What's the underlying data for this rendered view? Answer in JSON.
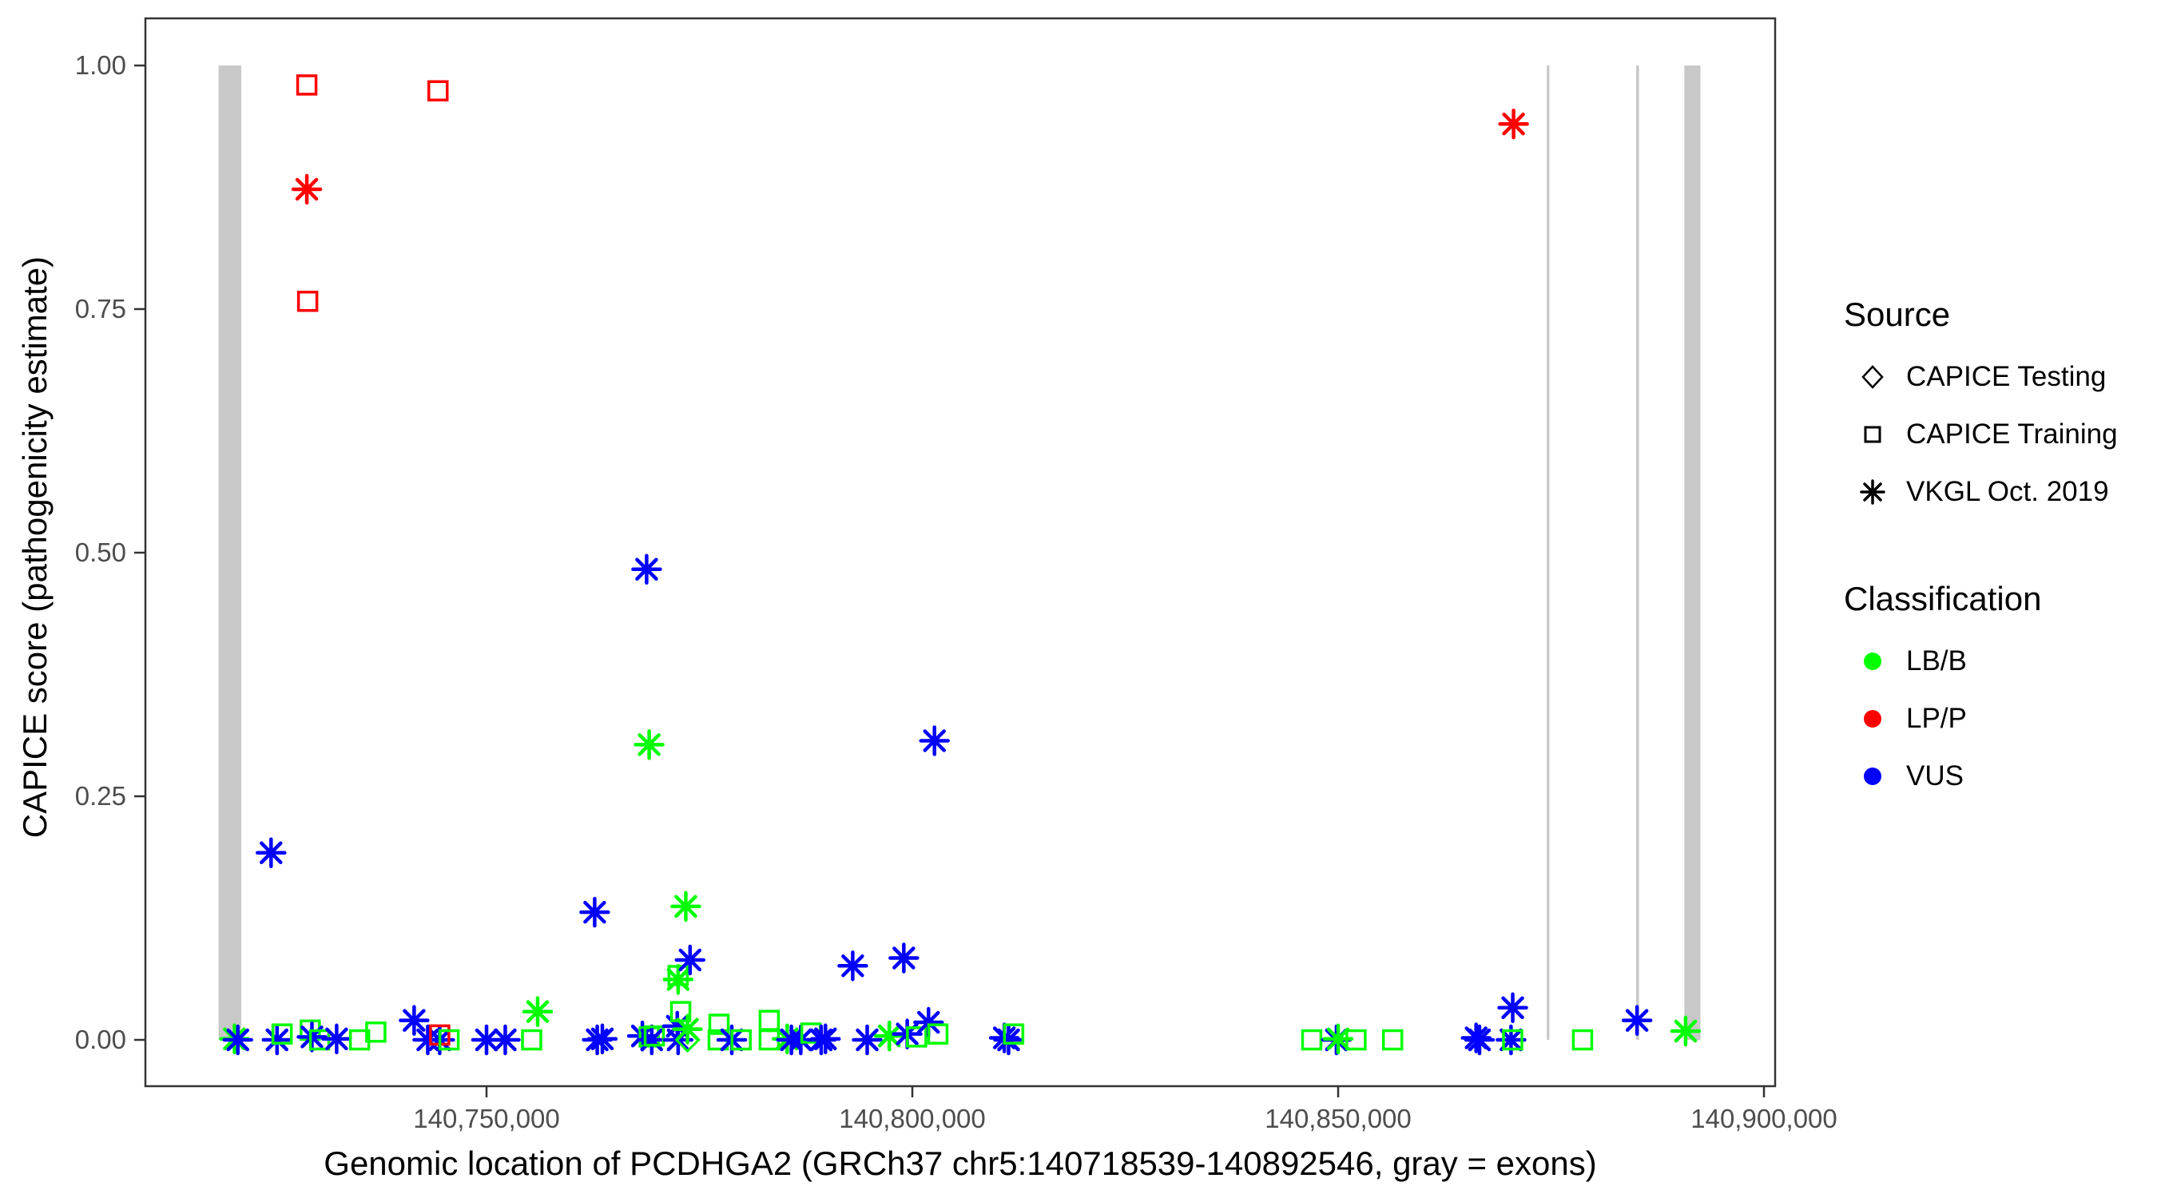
{
  "figure": {
    "y_axis": {
      "title": "CAPICE score (pathogenicity estimate)",
      "ticks": [
        {
          "value": 0.0,
          "label": "0.00"
        },
        {
          "value": 0.25,
          "label": "0.25"
        },
        {
          "value": 0.5,
          "label": "0.50"
        },
        {
          "value": 0.75,
          "label": "0.75"
        },
        {
          "value": 1.0,
          "label": "1.00"
        }
      ]
    },
    "x_axis": {
      "title": "Genomic location of PCDHGA2 (GRCh37 chr5:140718539-140892546, gray = exons)",
      "ticks": [
        {
          "value": 140750000,
          "label": "140,750,000"
        },
        {
          "value": 140800000,
          "label": "140,800,000"
        },
        {
          "value": 140850000,
          "label": "140,850,000"
        },
        {
          "value": 140900000,
          "label": "140,900,000"
        }
      ]
    },
    "legend": {
      "source": {
        "title": "Source",
        "items": [
          {
            "marker": "diamond-icon",
            "label": "CAPICE Testing",
            "source_code": "te"
          },
          {
            "marker": "square-icon",
            "label": "CAPICE Training",
            "source_code": "tr"
          },
          {
            "marker": "asterisk-icon",
            "label": "VKGL Oct. 2019",
            "source_code": "vk"
          }
        ]
      },
      "classification": {
        "title": "Classification",
        "items": [
          {
            "marker": "dot-icon",
            "label": "LB/B",
            "color": "#00FF00"
          },
          {
            "marker": "dot-icon",
            "label": "LP/P",
            "color": "#FF0000"
          },
          {
            "marker": "dot-icon",
            "label": "VUS",
            "color": "#0000FF"
          }
        ]
      }
    },
    "colors": {
      "LB/B": "#00FF00",
      "LP/P": "#FF0000",
      "VUS": "#0000FF",
      "exon": "#C8C8C8",
      "axis_line": "#333333",
      "tick_text": "#4D4D4D",
      "title_text": "#000000"
    }
  },
  "chart_data": {
    "type": "scatter",
    "xlabel": "Genomic location of PCDHGA2 (GRCh37 chr5:140718539-140892546, gray = exons)",
    "ylabel": "CAPICE score (pathogenicity estimate)",
    "xlim": [
      140709944,
      140901313
    ],
    "ylim": [
      -0.0475,
      1.0475
    ],
    "grid": false,
    "legend_position": "right",
    "shape_by_source": {
      "te": "diamond",
      "tr": "square",
      "vk": "asterisk"
    },
    "exons_gray_bars": [
      [
        140718539,
        140721200
      ],
      [
        140874500,
        140874800
      ],
      [
        140885000,
        140885330
      ],
      [
        140890650,
        140892546
      ]
    ],
    "points": [
      {
        "x": 140720400,
        "y": 0.001,
        "source": "vk",
        "classification": "LB/B"
      },
      {
        "x": 140720800,
        "y": 0.0,
        "source": "vk",
        "classification": "VUS"
      },
      {
        "x": 140724700,
        "y": 0.192,
        "source": "vk",
        "classification": "VUS"
      },
      {
        "x": 140725400,
        "y": 0.0,
        "source": "vk",
        "classification": "VUS"
      },
      {
        "x": 140726000,
        "y": 0.006,
        "source": "tr",
        "classification": "LB/B"
      },
      {
        "x": 140729300,
        "y": 0.01,
        "source": "tr",
        "classification": "LB/B"
      },
      {
        "x": 140729500,
        "y": 0.003,
        "source": "vk",
        "classification": "VUS"
      },
      {
        "x": 140730400,
        "y": 0.0,
        "source": "tr",
        "classification": "LB/B"
      },
      {
        "x": 140732400,
        "y": 0.001,
        "source": "vk",
        "classification": "VUS"
      },
      {
        "x": 140735100,
        "y": 0.0,
        "source": "tr",
        "classification": "LB/B"
      },
      {
        "x": 140737000,
        "y": 0.008,
        "source": "tr",
        "classification": "LB/B"
      },
      {
        "x": 140741500,
        "y": 0.02,
        "source": "vk",
        "classification": "VUS"
      },
      {
        "x": 140743100,
        "y": 0.0,
        "source": "vk",
        "classification": "VUS"
      },
      {
        "x": 140744500,
        "y": 0.0,
        "source": "vk",
        "classification": "VUS"
      },
      {
        "x": 140744500,
        "y": 0.005,
        "source": "tr",
        "classification": "LP/P"
      },
      {
        "x": 140745600,
        "y": 0.0,
        "source": "tr",
        "classification": "LB/B"
      },
      {
        "x": 140750000,
        "y": 0.0,
        "source": "vk",
        "classification": "VUS"
      },
      {
        "x": 140752200,
        "y": 0.0,
        "source": "vk",
        "classification": "VUS"
      },
      {
        "x": 140755300,
        "y": 0.0,
        "source": "tr",
        "classification": "LB/B"
      },
      {
        "x": 140756000,
        "y": 0.029,
        "source": "vk",
        "classification": "LB/B"
      },
      {
        "x": 140762700,
        "y": 0.131,
        "source": "vk",
        "classification": "VUS"
      },
      {
        "x": 140763000,
        "y": 0.0,
        "source": "vk",
        "classification": "VUS"
      },
      {
        "x": 140763600,
        "y": 0.001,
        "source": "vk",
        "classification": "VUS"
      },
      {
        "x": 140768300,
        "y": 0.004,
        "source": "vk",
        "classification": "VUS"
      },
      {
        "x": 140768800,
        "y": 0.483,
        "source": "vk",
        "classification": "VUS"
      },
      {
        "x": 140769100,
        "y": 0.303,
        "source": "vk",
        "classification": "LB/B"
      },
      {
        "x": 140769100,
        "y": 0.003,
        "source": "tr",
        "classification": "LB/B"
      },
      {
        "x": 140769400,
        "y": 0.0,
        "source": "vk",
        "classification": "VUS"
      },
      {
        "x": 140769700,
        "y": 0.004,
        "source": "tr",
        "classification": "LB/B"
      },
      {
        "x": 140772400,
        "y": 0.014,
        "source": "vk",
        "classification": "VUS"
      },
      {
        "x": 140772500,
        "y": 0.062,
        "source": "vk",
        "classification": "LB/B"
      },
      {
        "x": 140772500,
        "y": 0.066,
        "source": "tr",
        "classification": "LB/B"
      },
      {
        "x": 140772500,
        "y": 0.0,
        "source": "vk",
        "classification": "VUS"
      },
      {
        "x": 140772800,
        "y": 0.029,
        "source": "tr",
        "classification": "LB/B"
      },
      {
        "x": 140773400,
        "y": 0.137,
        "source": "vk",
        "classification": "LB/B"
      },
      {
        "x": 140773600,
        "y": 0.0,
        "source": "te",
        "classification": "LB/B"
      },
      {
        "x": 140773600,
        "y": 0.011,
        "source": "vk",
        "classification": "LB/B"
      },
      {
        "x": 140773900,
        "y": 0.082,
        "source": "vk",
        "classification": "VUS"
      },
      {
        "x": 140777200,
        "y": 0.0,
        "source": "tr",
        "classification": "LB/B"
      },
      {
        "x": 140777300,
        "y": 0.016,
        "source": "tr",
        "classification": "LB/B"
      },
      {
        "x": 140778800,
        "y": 0.0,
        "source": "vk",
        "classification": "VUS"
      },
      {
        "x": 140779900,
        "y": 0.0,
        "source": "tr",
        "classification": "LB/B"
      },
      {
        "x": 140783200,
        "y": 0.02,
        "source": "tr",
        "classification": "LB/B"
      },
      {
        "x": 140783200,
        "y": 0.0,
        "source": "tr",
        "classification": "LB/B"
      },
      {
        "x": 140785300,
        "y": 0.001,
        "source": "vk",
        "classification": "LB/B"
      },
      {
        "x": 140785800,
        "y": 0.0,
        "source": "vk",
        "classification": "VUS"
      },
      {
        "x": 140786900,
        "y": 0.0,
        "source": "vk",
        "classification": "VUS"
      },
      {
        "x": 140788100,
        "y": 0.007,
        "source": "tr",
        "classification": "LB/B"
      },
      {
        "x": 140789300,
        "y": 0.0,
        "source": "vk",
        "classification": "VUS"
      },
      {
        "x": 140789800,
        "y": 0.001,
        "source": "vk",
        "classification": "VUS"
      },
      {
        "x": 140793000,
        "y": 0.076,
        "source": "vk",
        "classification": "VUS"
      },
      {
        "x": 140794700,
        "y": 0.0,
        "source": "vk",
        "classification": "VUS"
      },
      {
        "x": 140797300,
        "y": 0.004,
        "source": "vk",
        "classification": "LB/B"
      },
      {
        "x": 140799000,
        "y": 0.084,
        "source": "vk",
        "classification": "VUS"
      },
      {
        "x": 140799400,
        "y": 0.006,
        "source": "vk",
        "classification": "VUS"
      },
      {
        "x": 140800500,
        "y": 0.003,
        "source": "tr",
        "classification": "LB/B"
      },
      {
        "x": 140801900,
        "y": 0.018,
        "source": "vk",
        "classification": "VUS"
      },
      {
        "x": 140802600,
        "y": 0.307,
        "source": "vk",
        "classification": "VUS"
      },
      {
        "x": 140803000,
        "y": 0.006,
        "source": "tr",
        "classification": "LB/B"
      },
      {
        "x": 140810800,
        "y": 0.002,
        "source": "vk",
        "classification": "VUS"
      },
      {
        "x": 140811300,
        "y": 0.0,
        "source": "vk",
        "classification": "VUS"
      },
      {
        "x": 140811900,
        "y": 0.006,
        "source": "tr",
        "classification": "LB/B"
      },
      {
        "x": 140846900,
        "y": 0.0,
        "source": "tr",
        "classification": "LB/B"
      },
      {
        "x": 140849800,
        "y": 0.0,
        "source": "vk",
        "classification": "VUS"
      },
      {
        "x": 140850000,
        "y": 0.001,
        "source": "vk",
        "classification": "LB/B"
      },
      {
        "x": 140852100,
        "y": 0.0,
        "source": "tr",
        "classification": "LB/B"
      },
      {
        "x": 140856400,
        "y": 0.0,
        "source": "tr",
        "classification": "LB/B"
      },
      {
        "x": 140866200,
        "y": 0.002,
        "source": "vk",
        "classification": "VUS"
      },
      {
        "x": 140866600,
        "y": 0.0,
        "source": "vk",
        "classification": "VUS"
      },
      {
        "x": 140870300,
        "y": 0.0,
        "source": "vk",
        "classification": "VUS"
      },
      {
        "x": 140870500,
        "y": 0.033,
        "source": "vk",
        "classification": "VUS"
      },
      {
        "x": 140870500,
        "y": 0.0,
        "source": "tr",
        "classification": "LB/B"
      },
      {
        "x": 140878700,
        "y": 0.0,
        "source": "tr",
        "classification": "LB/B"
      },
      {
        "x": 140885100,
        "y": 0.02,
        "source": "vk",
        "classification": "VUS"
      },
      {
        "x": 140890800,
        "y": 0.009,
        "source": "vk",
        "classification": "LB/B"
      },
      {
        "x": 140728900,
        "y": 0.98,
        "source": "tr",
        "classification": "LP/P"
      },
      {
        "x": 140744300,
        "y": 0.974,
        "source": "tr",
        "classification": "LP/P"
      },
      {
        "x": 140728900,
        "y": 0.873,
        "source": "vk",
        "classification": "LP/P"
      },
      {
        "x": 140729000,
        "y": 0.758,
        "source": "tr",
        "classification": "LP/P"
      },
      {
        "x": 140870600,
        "y": 0.94,
        "source": "vk",
        "classification": "LP/P"
      }
    ]
  }
}
